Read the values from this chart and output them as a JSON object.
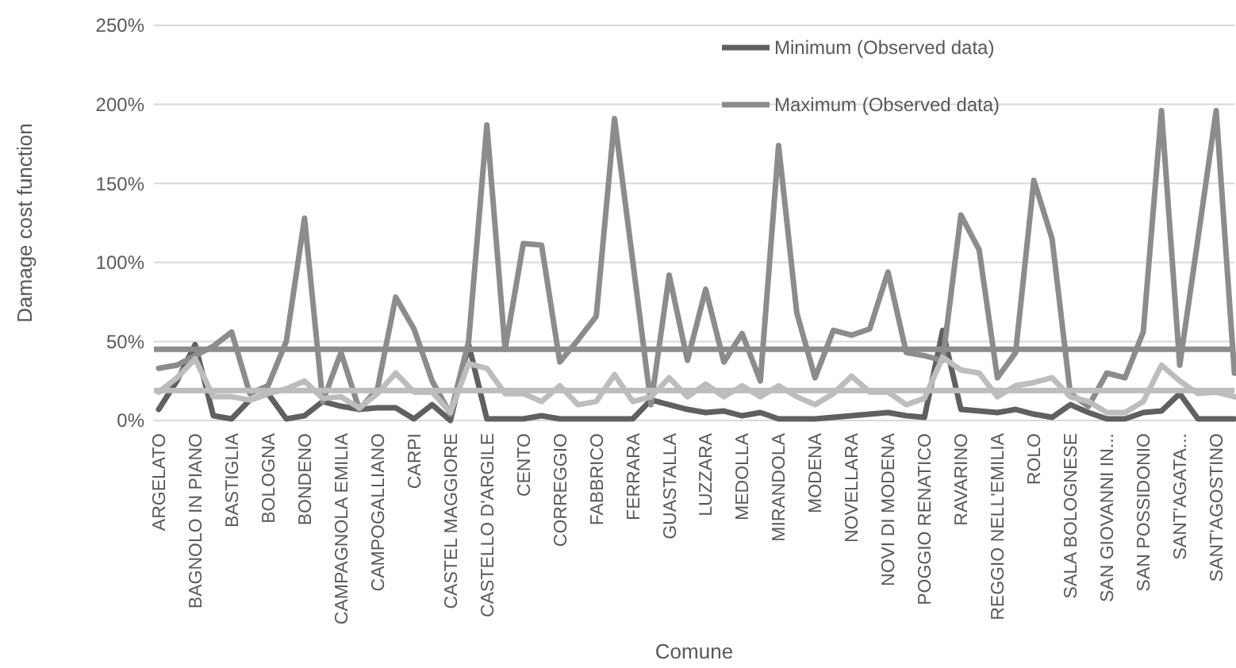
{
  "chart_data": {
    "type": "line",
    "xlabel": "Comune",
    "ylabel": "Damage cost function",
    "categories": [
      "ARGELATO",
      null,
      "BAGNOLO IN PIANO",
      null,
      "BASTIGLIA",
      null,
      "BOLOGNA",
      null,
      "BONDENO",
      null,
      "CAMPAGNOLA EMILIA",
      null,
      "CAMPOGALLIANO",
      null,
      "CARPI",
      null,
      "CASTEL MAGGIORE",
      null,
      "CASTELLO D'ARGILE",
      null,
      "CENTO",
      null,
      "CORREGGIO",
      null,
      "FABBRICO",
      null,
      "FERRARA",
      null,
      "GUASTALLA",
      null,
      "LUZZARA",
      null,
      "MEDOLLA",
      null,
      "MIRANDOLA",
      null,
      "MODENA",
      null,
      "NOVELLARA",
      null,
      "NOVI DI MODENA",
      null,
      "POGGIO RENATICO",
      null,
      "RAVARINO",
      null,
      "REGGIO NELL'EMILIA",
      null,
      "ROLO",
      null,
      "SALA BOLOGNESE",
      null,
      "SAN GIOVANNI IN...",
      null,
      "SAN POSSIDONIO",
      null,
      "SANT'AGATA...",
      null,
      "SANT'AGOSTINO",
      null
    ],
    "series": [
      {
        "name": "Minimum (Observed data)",
        "color": "#606060",
        "values": [
          7,
          25,
          48,
          3,
          1,
          13,
          17,
          1,
          3,
          12,
          9,
          7,
          8,
          8,
          1,
          10,
          0,
          48,
          1,
          1,
          1,
          3,
          1,
          1,
          1,
          1,
          1,
          13,
          10,
          7,
          5,
          6,
          3,
          5,
          1,
          1,
          1,
          2,
          3,
          4,
          5,
          3,
          2,
          57,
          7,
          6,
          5,
          7,
          4,
          2,
          10,
          5,
          1,
          1,
          5,
          6,
          17,
          1,
          1,
          1
        ]
      },
      {
        "name": "Maximum (Observed data)",
        "color": "#8c8c8c",
        "values": [
          33,
          35,
          41,
          47,
          56,
          17,
          22,
          50,
          128,
          12,
          43,
          7,
          20,
          78,
          58,
          25,
          4,
          50,
          187,
          45,
          112,
          111,
          37,
          51,
          66,
          191,
          101,
          10,
          92,
          38,
          83,
          37,
          55,
          25,
          174,
          68,
          27,
          57,
          54,
          58,
          94,
          43,
          41,
          38,
          130,
          108,
          27,
          43,
          152,
          115,
          17,
          9,
          30,
          27,
          56,
          196,
          35,
          115,
          196,
          30
        ]
      },
      {
        "color": "#bdbdbd",
        "values": [
          18,
          27,
          39,
          15,
          15,
          13,
          17,
          20,
          25,
          14,
          15,
          8,
          17,
          30,
          18,
          18,
          5,
          36,
          33,
          17,
          17,
          12,
          22,
          10,
          12,
          29,
          12,
          15,
          27,
          15,
          23,
          15,
          22,
          15,
          22,
          15,
          10,
          17,
          28,
          18,
          18,
          10,
          14,
          40,
          32,
          30,
          15,
          22,
          24,
          27,
          15,
          12,
          5,
          5,
          12,
          35,
          25,
          17,
          18,
          15
        ]
      }
    ],
    "ref_lines": [
      {
        "axis": "y",
        "value": 45,
        "color": "#8c8c8c"
      },
      {
        "axis": "y",
        "value": 19,
        "color": "#bdbdbd"
      }
    ],
    "ylim": [
      0,
      250
    ],
    "yticks": [
      {
        "value": 0,
        "label": "0%"
      },
      {
        "value": 50,
        "label": "50%"
      },
      {
        "value": 100,
        "label": "100%"
      },
      {
        "value": 150,
        "label": "150%"
      },
      {
        "value": 200,
        "label": "200%"
      },
      {
        "value": 250,
        "label": "250%"
      }
    ],
    "grid": "y",
    "legend": "top right",
    "marker": "none",
    "line_style": "solid"
  }
}
